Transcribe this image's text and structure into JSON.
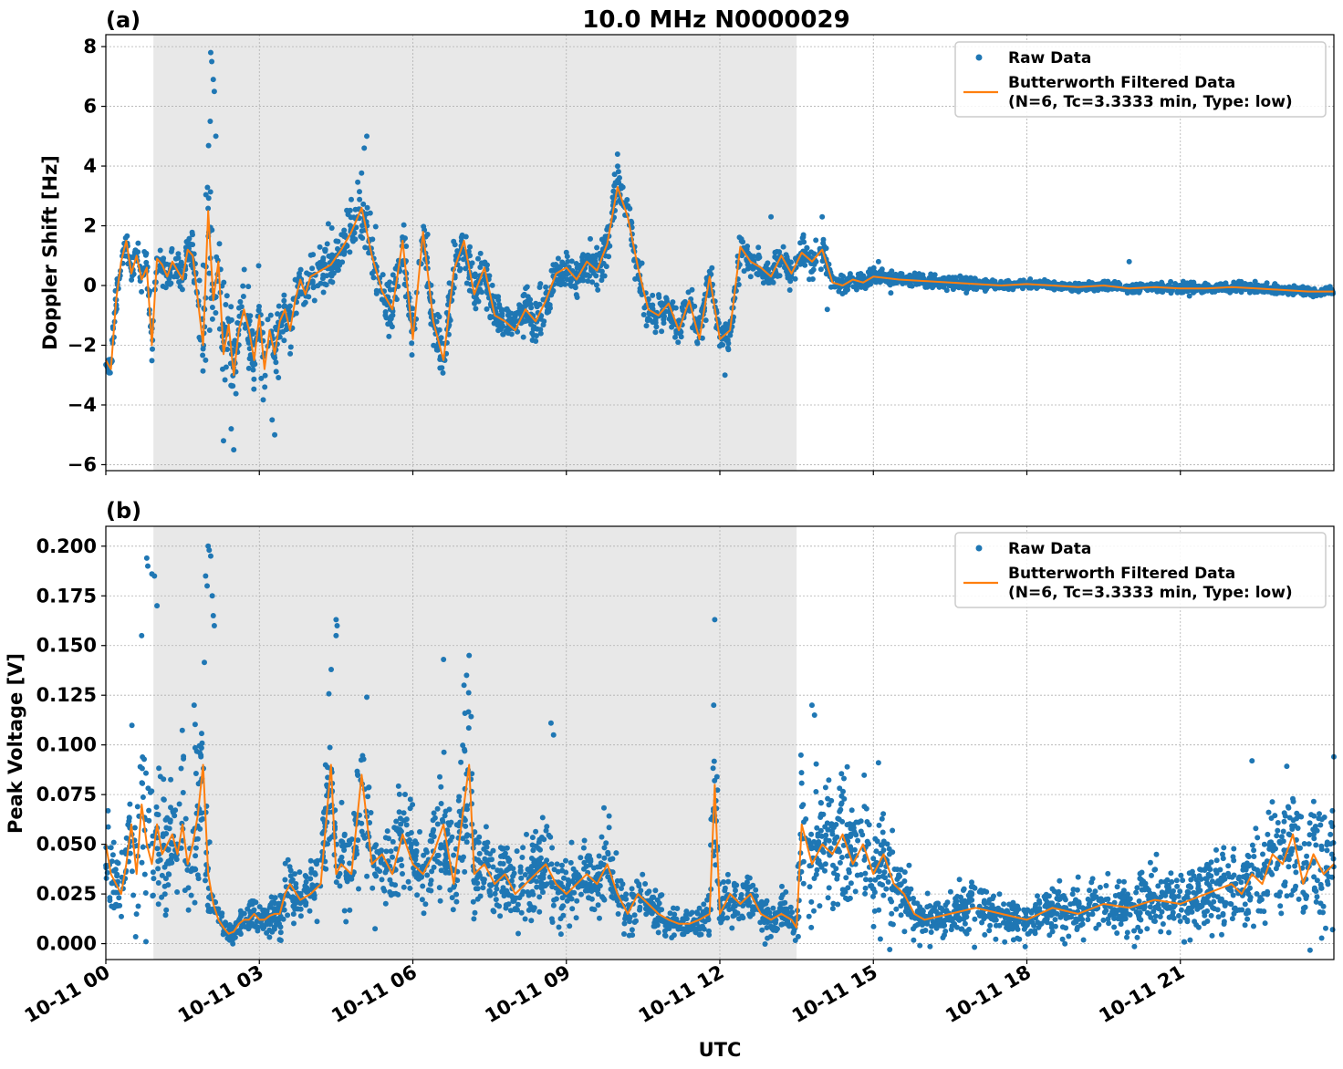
{
  "figure": {
    "title": "10.0 MHz N0000029",
    "xlabel": "UTC",
    "shaded_region_label": "",
    "colors": {
      "raw": "#1f77b4",
      "filtered": "#ff7f0e",
      "shade": "#e8e8e8",
      "grid": "#b0b0b0"
    }
  },
  "chart_data": [
    {
      "type": "scatter",
      "panel_label": "(a)",
      "ylabel": "Doppler Shift [Hz]",
      "xlim": [
        0,
        24
      ],
      "ylim": [
        -6.2,
        8.4
      ],
      "yticks": [
        -6,
        -4,
        -2,
        0,
        2,
        4,
        6,
        8
      ],
      "ytick_labels": [
        "−6",
        "−4",
        "−2",
        "0",
        "2",
        "4",
        "6",
        "8"
      ],
      "xticks": [
        0,
        3,
        6,
        9,
        12,
        15,
        18,
        21
      ],
      "xtick_labels": [
        "10-11 00",
        "10-11 03",
        "10-11 06",
        "10-11 09",
        "10-11 12",
        "10-11 15",
        "10-11 18",
        "10-11 21"
      ],
      "shaded_x": [
        0.93,
        13.5
      ],
      "grid": true,
      "legend": {
        "placement": "top-right",
        "entries": [
          "Raw Data",
          "Butterworth Filtered Data",
          "(N=6, Tc=3.3333 min, Type: low)"
        ]
      },
      "series": [
        {
          "name": "Butterworth Filtered Data",
          "x": [
            0,
            0.1,
            0.2,
            0.3,
            0.4,
            0.5,
            0.6,
            0.7,
            0.8,
            0.9,
            1.0,
            1.1,
            1.2,
            1.3,
            1.4,
            1.5,
            1.6,
            1.7,
            1.8,
            1.9,
            2.0,
            2.1,
            2.2,
            2.3,
            2.4,
            2.5,
            2.6,
            2.7,
            2.8,
            2.9,
            3.0,
            3.1,
            3.2,
            3.3,
            3.4,
            3.5,
            3.6,
            3.7,
            3.8,
            3.9,
            4.0,
            4.2,
            4.4,
            4.6,
            4.8,
            5.0,
            5.2,
            5.4,
            5.6,
            5.8,
            6.0,
            6.2,
            6.4,
            6.6,
            6.8,
            7.0,
            7.2,
            7.4,
            7.6,
            7.8,
            8.0,
            8.2,
            8.4,
            8.6,
            8.8,
            9.0,
            9.2,
            9.4,
            9.6,
            9.8,
            10.0,
            10.2,
            10.4,
            10.6,
            10.8,
            11.0,
            11.2,
            11.4,
            11.6,
            11.8,
            12.0,
            12.2,
            12.4,
            12.6,
            12.8,
            13.0,
            13.2,
            13.4,
            13.6,
            13.8,
            14.0,
            14.2,
            14.4,
            14.6,
            14.8,
            15.0,
            15.5,
            16.0,
            16.5,
            17.0,
            17.5,
            18.0,
            18.5,
            19.0,
            19.5,
            20.0,
            20.5,
            21.0,
            21.5,
            22.0,
            22.5,
            23.0,
            23.5,
            24.0
          ],
          "y": [
            -2.5,
            -2.8,
            -0.5,
            0.8,
            1.5,
            0.4,
            1.0,
            0.2,
            0.6,
            -2.0,
            0.9,
            0.7,
            0.3,
            0.8,
            0.5,
            0.2,
            1.2,
            1.0,
            -0.5,
            -2.0,
            2.5,
            -0.5,
            0.8,
            -2.3,
            -1.3,
            -3.0,
            -1.5,
            -0.8,
            -1.5,
            -2.5,
            -1.0,
            -2.8,
            -1.5,
            -2.3,
            -1.2,
            -0.8,
            -1.5,
            -0.5,
            0.2,
            -0.3,
            0.3,
            0.5,
            0.7,
            1.2,
            1.8,
            2.6,
            1.0,
            -0.2,
            -0.8,
            1.5,
            -1.8,
            1.8,
            -1.2,
            -2.5,
            0.5,
            1.5,
            -0.3,
            0.6,
            -1.0,
            -1.2,
            -1.5,
            -0.8,
            -1.2,
            -0.5,
            0.4,
            0.6,
            0.2,
            0.8,
            0.5,
            1.4,
            3.3,
            2.3,
            0.6,
            -0.8,
            -1.0,
            -0.6,
            -1.5,
            -0.5,
            -1.8,
            0.3,
            -1.8,
            -1.5,
            1.3,
            0.8,
            0.6,
            0.3,
            1.0,
            0.4,
            1.1,
            0.8,
            1.2,
            0.1,
            0.0,
            0.2,
            0.1,
            0.3,
            0.2,
            0.15,
            0.1,
            0.05,
            0.0,
            0.05,
            0.0,
            -0.05,
            0.0,
            -0.1,
            -0.05,
            -0.1,
            -0.1,
            -0.05,
            -0.1,
            -0.15,
            -0.2,
            -0.2
          ]
        },
        {
          "name": "Raw Data",
          "band_half_width": [
            0.5,
            0.5,
            0.8,
            0.6,
            0.5,
            0.5,
            0.5,
            0.5,
            0.5,
            0.6,
            0.5,
            0.5,
            0.5,
            0.5,
            0.5,
            0.5,
            0.6,
            0.7,
            1.2,
            1.8,
            3.0,
            2.0,
            1.5,
            1.8,
            1.6,
            1.5,
            1.2,
            1.0,
            1.0,
            1.2,
            1.0,
            1.0,
            0.9,
            0.9,
            0.9,
            0.8,
            0.8,
            0.8,
            0.8,
            0.8,
            0.7,
            0.8,
            0.8,
            0.9,
            1.0,
            1.3,
            0.9,
            0.8,
            0.8,
            1.0,
            0.9,
            0.9,
            0.8,
            0.9,
            0.8,
            0.9,
            0.8,
            0.7,
            0.7,
            0.7,
            0.7,
            0.7,
            0.7,
            0.7,
            0.6,
            0.6,
            0.6,
            0.6,
            0.6,
            0.7,
            0.8,
            0.7,
            0.6,
            0.6,
            0.6,
            0.6,
            0.6,
            0.6,
            0.7,
            0.6,
            0.6,
            0.6,
            0.6,
            0.5,
            0.5,
            0.5,
            0.5,
            0.5,
            0.6,
            0.5,
            0.5,
            0.35,
            0.3,
            0.25,
            0.25,
            0.25,
            0.2,
            0.2,
            0.2,
            0.2,
            0.15,
            0.15,
            0.15,
            0.15,
            0.15,
            0.15,
            0.15,
            0.15,
            0.15,
            0.15,
            0.15,
            0.15,
            0.15,
            0.15
          ],
          "outliers": [
            [
              2.05,
              7.8
            ],
            [
              2.07,
              7.5
            ],
            [
              2.1,
              6.9
            ],
            [
              2.12,
              6.5
            ],
            [
              2.04,
              5.5
            ],
            [
              2.15,
              5.0
            ],
            [
              2.3,
              -5.2
            ],
            [
              2.5,
              -5.5
            ],
            [
              2.45,
              -4.8
            ],
            [
              1.95,
              -2.5
            ],
            [
              5.1,
              5.0
            ],
            [
              5.05,
              4.6
            ],
            [
              3.3,
              -5.0
            ],
            [
              3.25,
              -4.5
            ],
            [
              10.0,
              4.4
            ],
            [
              12.1,
              -3.0
            ],
            [
              13.0,
              2.3
            ],
            [
              14.0,
              2.3
            ],
            [
              14.1,
              -0.8
            ],
            [
              15.1,
              0.8
            ],
            [
              20.0,
              0.8
            ]
          ]
        }
      ]
    },
    {
      "type": "scatter",
      "panel_label": "(b)",
      "ylabel": "Peak Voltage [V]",
      "xlim": [
        0,
        24
      ],
      "ylim": [
        -0.008,
        0.21
      ],
      "yticks": [
        0.0,
        0.025,
        0.05,
        0.075,
        0.1,
        0.125,
        0.15,
        0.175,
        0.2
      ],
      "ytick_labels": [
        "0.000",
        "0.025",
        "0.050",
        "0.075",
        "0.100",
        "0.125",
        "0.150",
        "0.175",
        "0.200"
      ],
      "xticks": [
        0,
        3,
        6,
        9,
        12,
        15,
        18,
        21
      ],
      "xtick_labels": [
        "10-11 00",
        "10-11 03",
        "10-11 06",
        "10-11 09",
        "10-11 12",
        "10-11 15",
        "10-11 18",
        "10-11 21"
      ],
      "shaded_x": [
        0.93,
        13.5
      ],
      "grid": true,
      "legend": {
        "placement": "top-right",
        "entries": [
          "Raw Data",
          "Butterworth Filtered Data",
          "(N=6, Tc=3.3333 min, Type: low)"
        ]
      },
      "series": [
        {
          "name": "Butterworth Filtered Data",
          "x": [
            0,
            0.1,
            0.2,
            0.3,
            0.4,
            0.5,
            0.6,
            0.7,
            0.8,
            0.9,
            1.0,
            1.1,
            1.2,
            1.3,
            1.4,
            1.5,
            1.6,
            1.7,
            1.8,
            1.9,
            2.0,
            2.1,
            2.2,
            2.3,
            2.4,
            2.5,
            2.6,
            2.7,
            2.8,
            2.9,
            3.0,
            3.1,
            3.2,
            3.3,
            3.4,
            3.5,
            3.6,
            3.8,
            4.0,
            4.2,
            4.4,
            4.5,
            4.6,
            4.8,
            5.0,
            5.2,
            5.4,
            5.6,
            5.8,
            6.0,
            6.2,
            6.4,
            6.6,
            6.8,
            7.0,
            7.1,
            7.2,
            7.4,
            7.6,
            7.8,
            8.0,
            8.2,
            8.4,
            8.6,
            8.8,
            9.0,
            9.2,
            9.4,
            9.6,
            9.8,
            10.0,
            10.2,
            10.4,
            10.6,
            10.8,
            11.0,
            11.2,
            11.4,
            11.6,
            11.8,
            11.9,
            12.0,
            12.2,
            12.4,
            12.6,
            12.8,
            13.0,
            13.2,
            13.4,
            13.5,
            13.6,
            13.8,
            14.0,
            14.2,
            14.4,
            14.6,
            14.8,
            15.0,
            15.2,
            15.4,
            15.6,
            15.8,
            16.0,
            16.5,
            17.0,
            17.5,
            18.0,
            18.5,
            19.0,
            19.5,
            20.0,
            20.5,
            21.0,
            21.5,
            22.0,
            22.2,
            22.4,
            22.6,
            22.8,
            23.0,
            23.2,
            23.4,
            23.6,
            23.8,
            24.0
          ],
          "y": [
            0.05,
            0.035,
            0.03,
            0.025,
            0.04,
            0.06,
            0.035,
            0.07,
            0.05,
            0.04,
            0.06,
            0.045,
            0.05,
            0.055,
            0.045,
            0.06,
            0.04,
            0.05,
            0.065,
            0.09,
            0.035,
            0.02,
            0.012,
            0.008,
            0.005,
            0.006,
            0.01,
            0.012,
            0.012,
            0.015,
            0.012,
            0.012,
            0.014,
            0.015,
            0.015,
            0.025,
            0.03,
            0.022,
            0.025,
            0.03,
            0.09,
            0.035,
            0.04,
            0.035,
            0.085,
            0.04,
            0.045,
            0.035,
            0.055,
            0.04,
            0.035,
            0.045,
            0.06,
            0.03,
            0.07,
            0.09,
            0.035,
            0.04,
            0.03,
            0.035,
            0.025,
            0.03,
            0.035,
            0.04,
            0.03,
            0.025,
            0.03,
            0.035,
            0.03,
            0.04,
            0.025,
            0.015,
            0.025,
            0.02,
            0.015,
            0.012,
            0.01,
            0.01,
            0.012,
            0.015,
            0.08,
            0.015,
            0.025,
            0.02,
            0.025,
            0.015,
            0.012,
            0.015,
            0.012,
            0.008,
            0.06,
            0.04,
            0.05,
            0.045,
            0.055,
            0.04,
            0.05,
            0.035,
            0.045,
            0.03,
            0.025,
            0.015,
            0.012,
            0.015,
            0.018,
            0.015,
            0.012,
            0.018,
            0.015,
            0.02,
            0.018,
            0.022,
            0.02,
            0.025,
            0.03,
            0.025,
            0.035,
            0.03,
            0.045,
            0.04,
            0.055,
            0.03,
            0.045,
            0.035,
            0.04
          ]
        },
        {
          "name": "Raw Data",
          "band_half_width": [
            0.035,
            0.025,
            0.02,
            0.02,
            0.025,
            0.04,
            0.03,
            0.045,
            0.04,
            0.035,
            0.04,
            0.035,
            0.035,
            0.035,
            0.035,
            0.04,
            0.035,
            0.04,
            0.045,
            0.06,
            0.025,
            0.012,
            0.008,
            0.006,
            0.005,
            0.005,
            0.007,
            0.008,
            0.008,
            0.01,
            0.008,
            0.008,
            0.01,
            0.01,
            0.01,
            0.015,
            0.015,
            0.012,
            0.015,
            0.018,
            0.05,
            0.02,
            0.025,
            0.02,
            0.04,
            0.02,
            0.025,
            0.02,
            0.03,
            0.02,
            0.02,
            0.025,
            0.03,
            0.02,
            0.04,
            0.05,
            0.02,
            0.02,
            0.018,
            0.02,
            0.015,
            0.018,
            0.02,
            0.025,
            0.018,
            0.015,
            0.015,
            0.02,
            0.018,
            0.02,
            0.015,
            0.01,
            0.015,
            0.012,
            0.01,
            0.008,
            0.007,
            0.007,
            0.008,
            0.01,
            0.05,
            0.01,
            0.012,
            0.012,
            0.012,
            0.01,
            0.008,
            0.01,
            0.008,
            0.006,
            0.04,
            0.03,
            0.035,
            0.03,
            0.035,
            0.03,
            0.035,
            0.025,
            0.03,
            0.02,
            0.018,
            0.012,
            0.01,
            0.01,
            0.012,
            0.012,
            0.01,
            0.012,
            0.012,
            0.014,
            0.014,
            0.016,
            0.016,
            0.018,
            0.02,
            0.02,
            0.025,
            0.022,
            0.03,
            0.028,
            0.035,
            0.025,
            0.03,
            0.028,
            0.03
          ],
          "outliers": [
            [
              0.8,
              0.194
            ],
            [
              0.82,
              0.19
            ],
            [
              0.9,
              0.186
            ],
            [
              0.95,
              0.185
            ],
            [
              1.0,
              0.17
            ],
            [
              0.7,
              0.155
            ],
            [
              2.0,
              0.2
            ],
            [
              2.02,
              0.198
            ],
            [
              2.05,
              0.195
            ],
            [
              1.95,
              0.185
            ],
            [
              1.98,
              0.18
            ],
            [
              2.08,
              0.175
            ],
            [
              2.1,
              0.165
            ],
            [
              2.12,
              0.16
            ],
            [
              4.5,
              0.163
            ],
            [
              4.52,
              0.16
            ],
            [
              4.5,
              0.155
            ],
            [
              5.1,
              0.124
            ],
            [
              6.6,
              0.143
            ],
            [
              7.0,
              0.13
            ],
            [
              7.1,
              0.145
            ],
            [
              7.05,
              0.135
            ],
            [
              8.7,
              0.111
            ],
            [
              8.75,
              0.105
            ],
            [
              11.9,
              0.163
            ],
            [
              11.88,
              0.12
            ],
            [
              13.8,
              0.12
            ],
            [
              13.85,
              0.115
            ],
            [
              15.1,
              0.091
            ],
            [
              22.4,
              0.092
            ],
            [
              24.0,
              0.094
            ]
          ]
        }
      ]
    }
  ]
}
